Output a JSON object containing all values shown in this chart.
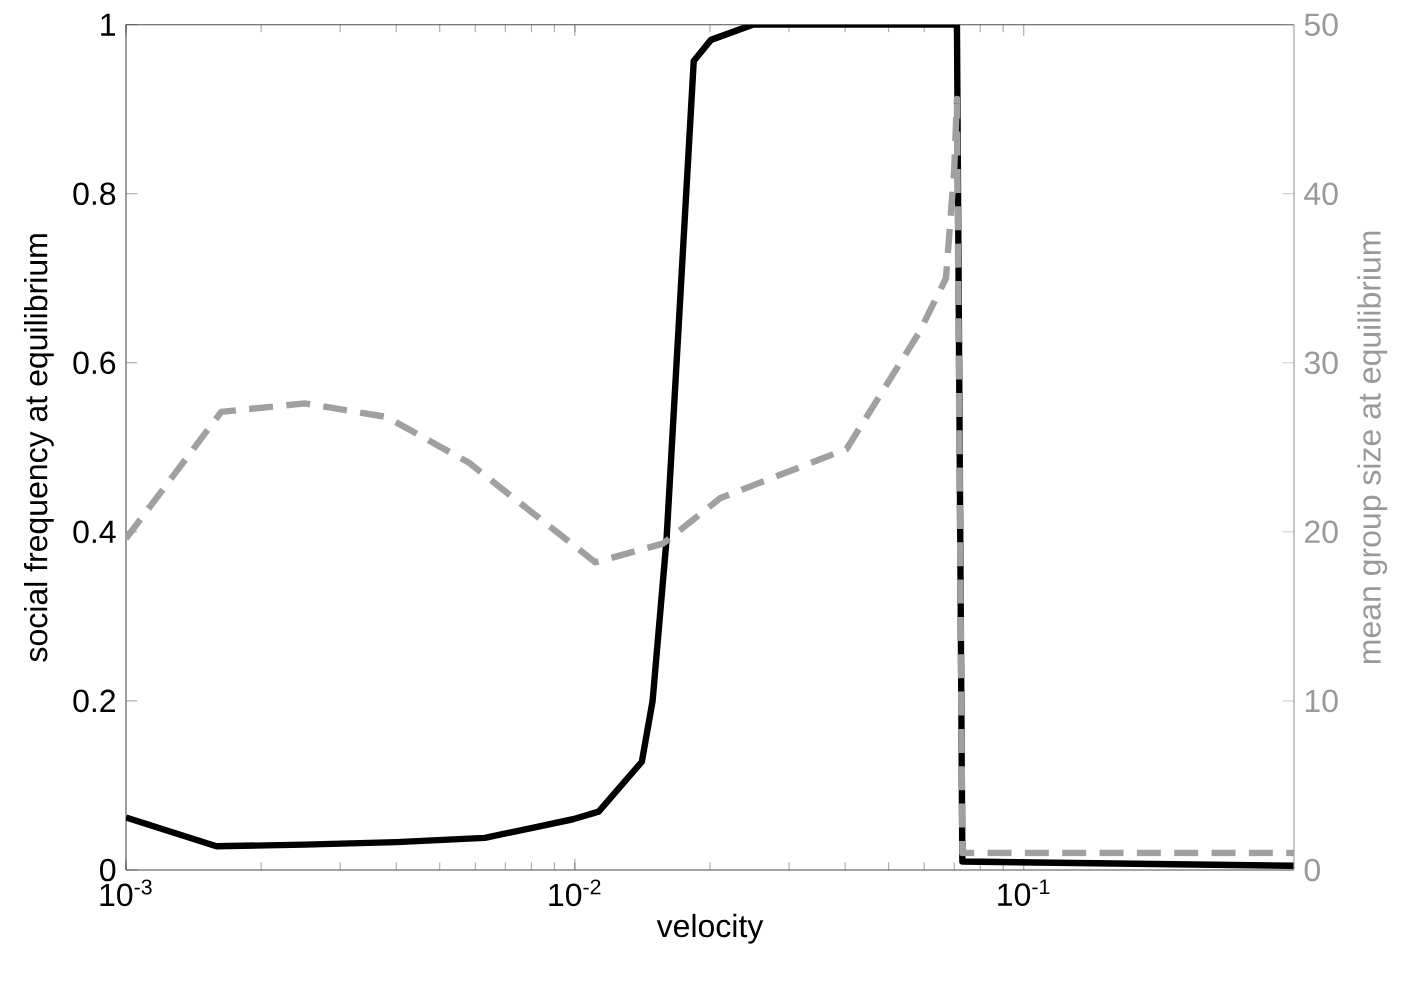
{
  "chart_data": {
    "type": "line",
    "xlabel": "velocity",
    "ylabel": "social frequency at equilibrium",
    "y2label": "mean group size at equilibrium",
    "log": "x",
    "marker": "none",
    "xlim": [
      0.001,
      0.4
    ],
    "ylim": [
      0,
      1
    ],
    "y2lim": [
      0,
      50
    ],
    "xticks": [
      {
        "value": 0.001,
        "label": "10$^{-3}$"
      },
      {
        "value": 0.01,
        "label": "10$^{-2}$"
      },
      {
        "value": 0.1,
        "label": "10$^{-1}$"
      }
    ],
    "yticks": [
      0,
      0.2,
      0.4,
      0.6,
      0.8,
      1
    ],
    "y2ticks": [
      0,
      10,
      20,
      30,
      40,
      50
    ],
    "series": [
      {
        "color": "#000000",
        "line_style": "solid",
        "x": [
          0.001,
          0.00159,
          0.0025,
          0.004,
          0.0063,
          0.0079,
          0.0099,
          0.0113,
          0.0141,
          0.0149,
          0.016,
          0.0184,
          0.0201,
          0.0249,
          0.071,
          0.073,
          0.4
        ],
        "values": [
          0.062,
          0.028,
          0.03,
          0.033,
          0.038,
          0.049,
          0.06,
          0.069,
          0.128,
          0.2,
          0.39,
          0.957,
          0.982,
          1.0,
          1.0,
          0.01,
          0.005
        ]
      },
      {
        "color": "#a0a0a0",
        "line_style": "dashed",
        "axis": "y2",
        "x": [
          0.001,
          0.00163,
          0.0025,
          0.0038,
          0.0058,
          0.0111,
          0.0157,
          0.0211,
          0.0403,
          0.0585,
          0.0671,
          0.07,
          0.071,
          0.073,
          0.4
        ],
        "values": [
          19.6,
          27.1,
          27.6,
          26.8,
          24.1,
          18.2,
          19.3,
          22.0,
          24.9,
          31.8,
          35,
          41.4,
          45.6,
          1,
          1
        ]
      }
    ]
  }
}
